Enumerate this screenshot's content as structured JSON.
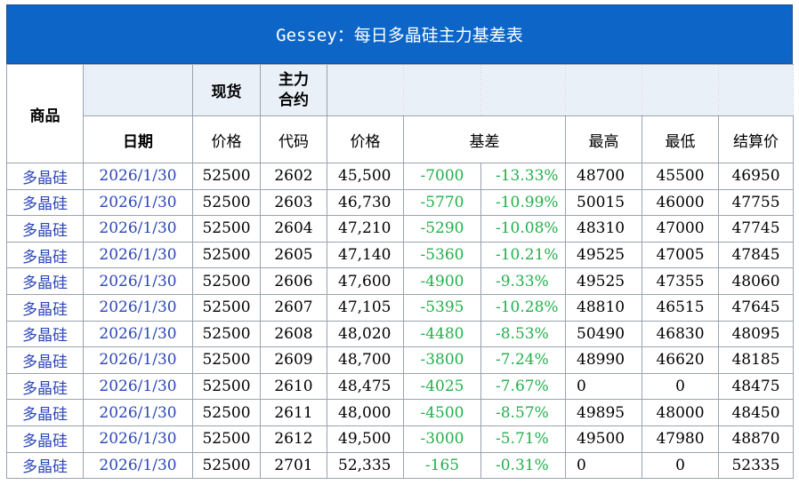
{
  "title": "Gessey：每日多晶硅主力基差表",
  "header": {
    "product": "商品",
    "spot": "现货",
    "main_contract": "主力合约",
    "date": "日期",
    "spot_price": "价格",
    "code": "代码",
    "price": "价格",
    "basis": "基差",
    "high": "最高",
    "low": "最低",
    "settle": "结算价"
  },
  "rows": [
    {
      "product": "多晶硅",
      "date": "2026/1/30",
      "spot": "52500",
      "code": "2602",
      "price": "45,500",
      "basis": "-7000",
      "basis_pct": "-13.33%",
      "high": "48700",
      "low": "45500",
      "settle": "46950"
    },
    {
      "product": "多晶硅",
      "date": "2026/1/30",
      "spot": "52500",
      "code": "2603",
      "price": "46,730",
      "basis": "-5770",
      "basis_pct": "-10.99%",
      "high": "50015",
      "low": "46000",
      "settle": "47755"
    },
    {
      "product": "多晶硅",
      "date": "2026/1/30",
      "spot": "52500",
      "code": "2604",
      "price": "47,210",
      "basis": "-5290",
      "basis_pct": "-10.08%",
      "high": "48310",
      "low": "47000",
      "settle": "47745"
    },
    {
      "product": "多晶硅",
      "date": "2026/1/30",
      "spot": "52500",
      "code": "2605",
      "price": "47,140",
      "basis": "-5360",
      "basis_pct": "-10.21%",
      "high": "49525",
      "low": "47005",
      "settle": "47845"
    },
    {
      "product": "多晶硅",
      "date": "2026/1/30",
      "spot": "52500",
      "code": "2606",
      "price": "47,600",
      "basis": "-4900",
      "basis_pct": "-9.33%",
      "high": "49525",
      "low": "47355",
      "settle": "48060"
    },
    {
      "product": "多晶硅",
      "date": "2026/1/30",
      "spot": "52500",
      "code": "2607",
      "price": "47,105",
      "basis": "-5395",
      "basis_pct": "-10.28%",
      "high": "48810",
      "low": "46515",
      "settle": "47645"
    },
    {
      "product": "多晶硅",
      "date": "2026/1/30",
      "spot": "52500",
      "code": "2608",
      "price": "48,020",
      "basis": "-4480",
      "basis_pct": "-8.53%",
      "high": "50490",
      "low": "46830",
      "settle": "48095"
    },
    {
      "product": "多晶硅",
      "date": "2026/1/30",
      "spot": "52500",
      "code": "2609",
      "price": "48,700",
      "basis": "-3800",
      "basis_pct": "-7.24%",
      "high": "48990",
      "low": "46620",
      "settle": "48185"
    },
    {
      "product": "多晶硅",
      "date": "2026/1/30",
      "spot": "52500",
      "code": "2610",
      "price": "48,475",
      "basis": "-4025",
      "basis_pct": "-7.67%",
      "high": "0",
      "low": "0",
      "settle": "48475"
    },
    {
      "product": "多晶硅",
      "date": "2026/1/30",
      "spot": "52500",
      "code": "2611",
      "price": "48,000",
      "basis": "-4500",
      "basis_pct": "-8.57%",
      "high": "49895",
      "low": "48000",
      "settle": "48450"
    },
    {
      "product": "多晶硅",
      "date": "2026/1/30",
      "spot": "52500",
      "code": "2612",
      "price": "49,500",
      "basis": "-3000",
      "basis_pct": "-5.71%",
      "high": "49500",
      "low": "47980",
      "settle": "48870"
    },
    {
      "product": "多晶硅",
      "date": "2026/1/30",
      "spot": "52500",
      "code": "2701",
      "price": "52,335",
      "basis": "-165",
      "basis_pct": "-0.31%",
      "high": "0",
      "low": "0",
      "settle": "52335"
    }
  ],
  "colors": {
    "title_bg": "#0d66c7",
    "header_shade": "#e9f0f8",
    "link_blue": "#2b46b8",
    "basis_green": "#22b04b"
  }
}
